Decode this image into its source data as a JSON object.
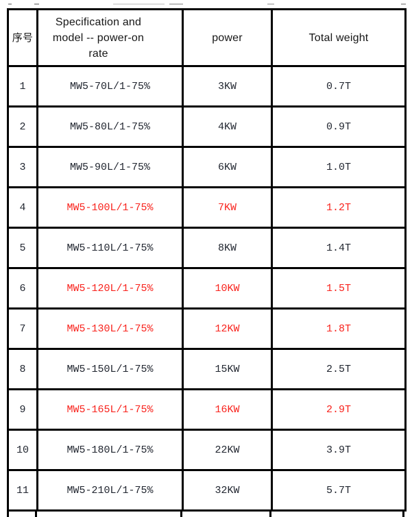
{
  "table": {
    "headers": {
      "index": "序号",
      "model": "Specification and model -- power-on rate",
      "power": "power",
      "weight": "Total weight"
    },
    "rows": [
      {
        "index": "1",
        "model": "MW5-70L/1-75%",
        "power": "3KW",
        "weight": "0.7T",
        "highlight": false
      },
      {
        "index": "2",
        "model": "MW5-80L/1-75%",
        "power": "4KW",
        "weight": "0.9T",
        "highlight": false
      },
      {
        "index": "3",
        "model": "MW5-90L/1-75%",
        "power": "6KW",
        "weight": "1.0T",
        "highlight": false
      },
      {
        "index": "4",
        "model": "MW5-100L/1-75%",
        "power": "7KW",
        "weight": "1.2T",
        "highlight": true
      },
      {
        "index": "5",
        "model": "MW5-110L/1-75%",
        "power": "8KW",
        "weight": "1.4T",
        "highlight": false
      },
      {
        "index": "6",
        "model": "MW5-120L/1-75%",
        "power": "10KW",
        "weight": "1.5T",
        "highlight": true
      },
      {
        "index": "7",
        "model": "MW5-130L/1-75%",
        "power": "12KW",
        "weight": "1.8T",
        "highlight": true
      },
      {
        "index": "8",
        "model": "MW5-150L/1-75%",
        "power": "15KW",
        "weight": "2.5T",
        "highlight": false
      },
      {
        "index": "9",
        "model": "MW5-165L/1-75%",
        "power": "16KW",
        "weight": "2.9T",
        "highlight": true
      },
      {
        "index": "10",
        "model": "MW5-180L/1-75%",
        "power": "22KW",
        "weight": "3.9T",
        "highlight": false
      },
      {
        "index": "11",
        "model": "MW5-210L/1-75%",
        "power": "32KW",
        "weight": "5.7T",
        "highlight": false
      }
    ],
    "colors": {
      "border": "#000000",
      "normal_text": "#1f242e",
      "highlight_text": "#f8221c"
    }
  }
}
